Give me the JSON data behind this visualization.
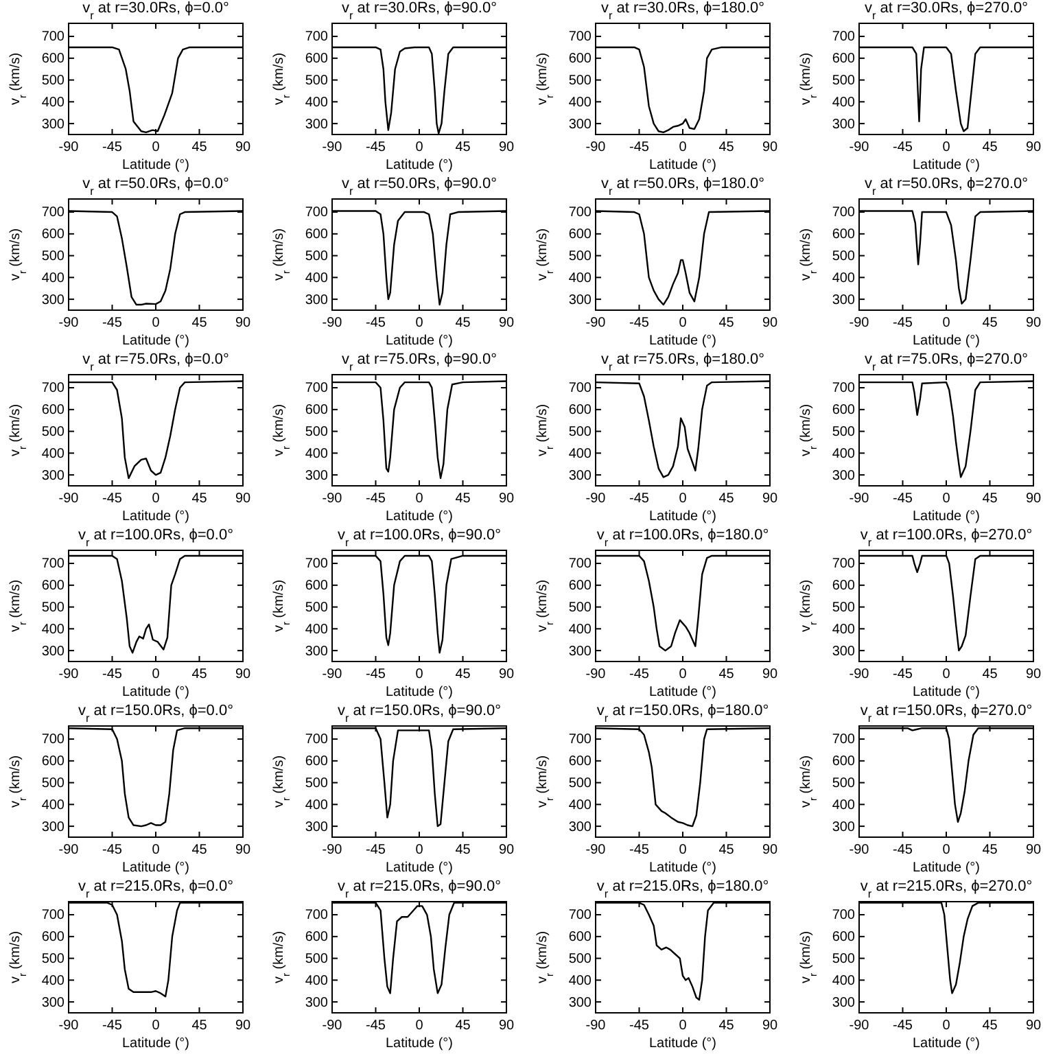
{
  "chart_data": [
    {
      "type": "line",
      "title": "v$_{r}$ at r=30.0Rs, ϕ=0.0°",
      "xlabel": "Latitude (°)",
      "ylabel": "v$_{r}$ (km/s)",
      "xlim": [
        -90,
        90
      ],
      "ylim": [
        250,
        760
      ],
      "xticks": [
        -90,
        -45,
        0,
        45,
        90
      ],
      "yticks": [
        300,
        400,
        500,
        600,
        700
      ],
      "series": [
        {
          "color": "#000000",
          "x": [
            -90,
            -45,
            -38,
            -31,
            -27,
            -23,
            -15,
            -10,
            -5,
            -3,
            2,
            9,
            17,
            23,
            28,
            35,
            90
          ],
          "values": [
            650,
            650,
            640,
            550,
            450,
            310,
            265,
            260,
            268,
            270,
            265,
            340,
            440,
            600,
            640,
            650,
            650
          ]
        }
      ]
    },
    {
      "type": "line",
      "title": "v$_{r}$ at r=30.0Rs, ϕ=90.0°",
      "xlabel": "Latitude (°)",
      "ylabel": "v$_{r}$ (km/s)",
      "xlim": [
        -90,
        90
      ],
      "ylim": [
        250,
        760
      ],
      "xticks": [
        -90,
        -45,
        0,
        45,
        90
      ],
      "yticks": [
        300,
        400,
        500,
        600,
        700
      ],
      "series": [
        {
          "color": "#000000",
          "x": [
            -90,
            -45,
            -40,
            -37,
            -35,
            -32,
            -29,
            -25,
            -20,
            -15,
            -5,
            10,
            13,
            16,
            18,
            20,
            23,
            26,
            30,
            35,
            90
          ],
          "values": [
            650,
            650,
            640,
            550,
            400,
            270,
            350,
            550,
            630,
            645,
            650,
            650,
            620,
            450,
            300,
            255,
            300,
            450,
            620,
            650,
            650
          ]
        }
      ]
    },
    {
      "type": "line",
      "title": "v$_{r}$ at r=30.0Rs, ϕ=180.0°",
      "xlabel": "Latitude (°)",
      "ylabel": "v$_{r}$ (km/s)",
      "xlim": [
        -90,
        90
      ],
      "ylim": [
        250,
        760
      ],
      "xticks": [
        -90,
        -45,
        0,
        45,
        90
      ],
      "yticks": [
        300,
        400,
        500,
        600,
        700
      ],
      "series": [
        {
          "color": "#000000",
          "x": [
            -90,
            -50,
            -45,
            -40,
            -35,
            -30,
            -25,
            -20,
            -15,
            -10,
            -5,
            0,
            3,
            7,
            12,
            17,
            22,
            25,
            30,
            40,
            90
          ],
          "values": [
            650,
            650,
            640,
            560,
            380,
            300,
            265,
            260,
            270,
            285,
            290,
            300,
            320,
            280,
            275,
            320,
            450,
            600,
            640,
            650,
            650
          ]
        }
      ]
    },
    {
      "type": "line",
      "title": "v$_{r}$ at r=30.0Rs, ϕ=270.0°",
      "xlabel": "Latitude (°)",
      "ylabel": "v$_{r}$ (km/s)",
      "xlim": [
        -90,
        90
      ],
      "ylim": [
        250,
        760
      ],
      "xticks": [
        -90,
        -45,
        0,
        45,
        90
      ],
      "yticks": [
        300,
        400,
        500,
        600,
        700
      ],
      "series": [
        {
          "color": "#000000",
          "x": [
            -90,
            -35,
            -31,
            -28,
            -26,
            -23,
            0,
            5,
            10,
            15,
            18,
            22,
            26,
            30,
            35,
            90
          ],
          "values": [
            650,
            650,
            620,
            310,
            550,
            650,
            650,
            620,
            450,
            300,
            265,
            280,
            450,
            620,
            650,
            650
          ]
        }
      ]
    },
    {
      "type": "line",
      "title": "v$_{r}$ at r=50.0Rs, ϕ=0.0°",
      "xlabel": "Latitude (°)",
      "ylabel": "v$_{r}$ (km/s)",
      "xlim": [
        -90,
        90
      ],
      "ylim": [
        250,
        760
      ],
      "xticks": [
        -90,
        -45,
        0,
        45,
        90
      ],
      "yticks": [
        300,
        400,
        500,
        600,
        700
      ],
      "series": [
        {
          "color": "#000000",
          "x": [
            -90,
            -45,
            -40,
            -35,
            -30,
            -25,
            -20,
            -15,
            -10,
            0,
            5,
            10,
            15,
            20,
            25,
            30,
            90
          ],
          "values": [
            705,
            700,
            680,
            580,
            450,
            310,
            275,
            275,
            280,
            278,
            290,
            340,
            440,
            600,
            690,
            700,
            705
          ]
        }
      ]
    },
    {
      "type": "line",
      "title": "v$_{r}$ at r=50.0Rs, ϕ=90.0°",
      "xlabel": "Latitude (°)",
      "ylabel": "v$_{r}$ (km/s)",
      "xlim": [
        -90,
        90
      ],
      "ylim": [
        250,
        760
      ],
      "xticks": [
        -90,
        -45,
        0,
        45,
        90
      ],
      "yticks": [
        300,
        400,
        500,
        600,
        700
      ],
      "series": [
        {
          "color": "#000000",
          "x": [
            -90,
            -45,
            -40,
            -37,
            -34,
            -32,
            -30,
            -26,
            -22,
            -15,
            5,
            10,
            14,
            18,
            21,
            24,
            28,
            32,
            40,
            90
          ],
          "values": [
            705,
            705,
            690,
            600,
            400,
            300,
            330,
            550,
            660,
            700,
            700,
            690,
            600,
            400,
            275,
            330,
            550,
            690,
            700,
            705
          ]
        }
      ]
    },
    {
      "type": "line",
      "title": "v$_{r}$ at r=50.0Rs, ϕ=180.0°",
      "xlabel": "Latitude (°)",
      "ylabel": "v$_{r}$ (km/s)",
      "xlim": [
        -90,
        90
      ],
      "ylim": [
        250,
        760
      ],
      "xticks": [
        -90,
        -45,
        0,
        45,
        90
      ],
      "yticks": [
        300,
        400,
        500,
        600,
        700
      ],
      "series": [
        {
          "color": "#000000",
          "x": [
            -90,
            -50,
            -45,
            -40,
            -35,
            -30,
            -25,
            -20,
            -15,
            -10,
            -5,
            -2,
            0,
            3,
            7,
            12,
            17,
            22,
            27,
            90
          ],
          "values": [
            705,
            700,
            690,
            600,
            400,
            340,
            300,
            275,
            310,
            370,
            420,
            480,
            480,
            420,
            330,
            290,
            400,
            600,
            700,
            705
          ]
        }
      ]
    },
    {
      "type": "line",
      "title": "v$_{r}$ at r=50.0Rs, ϕ=270.0°",
      "xlabel": "Latitude (°)",
      "ylabel": "v$_{r}$ (km/s)",
      "xlim": [
        -90,
        90
      ],
      "ylim": [
        250,
        760
      ],
      "xticks": [
        -90,
        -45,
        0,
        45,
        90
      ],
      "yticks": [
        300,
        400,
        500,
        600,
        700
      ],
      "series": [
        {
          "color": "#000000",
          "x": [
            -90,
            -35,
            -32,
            -29,
            -27,
            -25,
            0,
            5,
            10,
            13,
            16,
            20,
            25,
            30,
            35,
            90
          ],
          "values": [
            705,
            705,
            650,
            460,
            560,
            700,
            700,
            640,
            480,
            350,
            280,
            300,
            480,
            680,
            700,
            705
          ]
        }
      ]
    },
    {
      "type": "line",
      "title": "v$_{r}$ at r=75.0Rs, ϕ=0.0°",
      "xlabel": "Latitude (°)",
      "ylabel": "v$_{r}$ (km/s)",
      "xlim": [
        -90,
        90
      ],
      "ylim": [
        250,
        760
      ],
      "xticks": [
        -90,
        -45,
        0,
        45,
        90
      ],
      "yticks": [
        300,
        400,
        500,
        600,
        700
      ],
      "series": [
        {
          "color": "#000000",
          "x": [
            -90,
            -45,
            -40,
            -35,
            -32,
            -28,
            -22,
            -15,
            -10,
            -5,
            0,
            5,
            10,
            15,
            20,
            25,
            30,
            90
          ],
          "values": [
            725,
            725,
            690,
            560,
            380,
            285,
            340,
            370,
            375,
            320,
            300,
            310,
            380,
            480,
            600,
            700,
            725,
            730
          ]
        }
      ]
    },
    {
      "type": "line",
      "title": "v$_{r}$ at r=75.0Rs, ϕ=90.0°",
      "xlabel": "Latitude (°)",
      "ylabel": "v$_{r}$ (km/s)",
      "xlim": [
        -90,
        90
      ],
      "ylim": [
        250,
        760
      ],
      "xticks": [
        -90,
        -45,
        0,
        45,
        90
      ],
      "yticks": [
        300,
        400,
        500,
        600,
        700
      ],
      "series": [
        {
          "color": "#000000",
          "x": [
            -90,
            -45,
            -40,
            -37,
            -34,
            -32,
            -30,
            -26,
            -20,
            -15,
            10,
            13,
            16,
            19,
            22,
            25,
            29,
            34,
            45,
            90
          ],
          "values": [
            725,
            725,
            700,
            550,
            330,
            315,
            380,
            600,
            700,
            725,
            725,
            700,
            550,
            380,
            285,
            350,
            600,
            715,
            725,
            730
          ]
        }
      ]
    },
    {
      "type": "line",
      "title": "v$_{r}$ at r=75.0Rs, ϕ=180.0°",
      "xlabel": "Latitude (°)",
      "ylabel": "v$_{r}$ (km/s)",
      "xlim": [
        -90,
        90
      ],
      "ylim": [
        250,
        760
      ],
      "xticks": [
        -90,
        -45,
        0,
        45,
        90
      ],
      "yticks": [
        300,
        400,
        500,
        600,
        700
      ],
      "series": [
        {
          "color": "#000000",
          "x": [
            -90,
            -45,
            -40,
            -35,
            -30,
            -25,
            -20,
            -15,
            -10,
            -5,
            -2,
            2,
            5,
            9,
            13,
            16,
            20,
            25,
            30,
            90
          ],
          "values": [
            725,
            720,
            660,
            550,
            430,
            330,
            290,
            300,
            340,
            430,
            560,
            520,
            420,
            370,
            320,
            420,
            600,
            710,
            725,
            730
          ]
        }
      ]
    },
    {
      "type": "line",
      "title": "v$_{r}$ at r=75.0Rs, ϕ=270.0°",
      "xlabel": "Latitude (°)",
      "ylabel": "v$_{r}$ (km/s)",
      "xlim": [
        -90,
        90
      ],
      "ylim": [
        250,
        760
      ],
      "xticks": [
        -90,
        -45,
        0,
        45,
        90
      ],
      "yticks": [
        300,
        400,
        500,
        600,
        700
      ],
      "series": [
        {
          "color": "#000000",
          "x": [
            -90,
            -35,
            -33,
            -30,
            -27,
            -25,
            0,
            3,
            7,
            10,
            13,
            15,
            20,
            25,
            30,
            35,
            90
          ],
          "values": [
            725,
            725,
            680,
            575,
            650,
            720,
            725,
            690,
            570,
            450,
            350,
            290,
            340,
            500,
            690,
            725,
            730
          ]
        }
      ]
    },
    {
      "type": "line",
      "title": "v$_{r}$ at r=100.0Rs, ϕ=0.0°",
      "xlabel": "Latitude (°)",
      "ylabel": "v$_{r}$ (km/s)",
      "xlim": [
        -90,
        90
      ],
      "ylim": [
        250,
        760
      ],
      "xticks": [
        -90,
        -45,
        0,
        45,
        90
      ],
      "yticks": [
        300,
        400,
        500,
        600,
        700
      ],
      "series": [
        {
          "color": "#000000",
          "x": [
            -90,
            -45,
            -40,
            -35,
            -30,
            -27,
            -24,
            -20,
            -17,
            -13,
            -10,
            -7,
            -3,
            2,
            8,
            12,
            16,
            20,
            25,
            30,
            90
          ],
          "values": [
            735,
            735,
            720,
            620,
            450,
            320,
            290,
            340,
            365,
            355,
            400,
            420,
            350,
            340,
            305,
            360,
            600,
            650,
            720,
            735,
            735
          ]
        }
      ]
    },
    {
      "type": "line",
      "title": "v$_{r}$ at r=100.0Rs, ϕ=90.0°",
      "xlabel": "Latitude (°)",
      "ylabel": "v$_{r}$ (km/s)",
      "xlim": [
        -90,
        90
      ],
      "ylim": [
        250,
        760
      ],
      "xticks": [
        -90,
        -45,
        0,
        45,
        90
      ],
      "yticks": [
        300,
        400,
        500,
        600,
        700
      ],
      "series": [
        {
          "color": "#000000",
          "x": [
            -90,
            -45,
            -40,
            -37,
            -34,
            -32,
            -30,
            -26,
            -20,
            -15,
            10,
            13,
            16,
            19,
            21,
            24,
            28,
            33,
            45,
            90
          ],
          "values": [
            735,
            735,
            710,
            560,
            360,
            325,
            380,
            600,
            710,
            735,
            735,
            710,
            560,
            380,
            290,
            350,
            600,
            720,
            735,
            735
          ]
        }
      ]
    },
    {
      "type": "line",
      "title": "v$_{r}$ at r=100.0Rs, ϕ=180.0°",
      "xlabel": "Latitude (°)",
      "ylabel": "v$_{r}$ (km/s)",
      "xlim": [
        -90,
        90
      ],
      "ylim": [
        250,
        760
      ],
      "xticks": [
        -90,
        -45,
        0,
        45,
        90
      ],
      "yticks": [
        300,
        400,
        500,
        600,
        700
      ],
      "series": [
        {
          "color": "#000000",
          "x": [
            -90,
            -45,
            -40,
            -35,
            -30,
            -27,
            -24,
            -18,
            -12,
            -8,
            -3,
            3,
            7,
            13,
            16,
            20,
            25,
            30,
            90
          ],
          "values": [
            735,
            735,
            710,
            620,
            500,
            400,
            320,
            300,
            320,
            380,
            440,
            410,
            380,
            320,
            450,
            650,
            725,
            735,
            735
          ]
        }
      ]
    },
    {
      "type": "line",
      "title": "v$_{r}$ at r=100.0Rs, ϕ=270.0°",
      "xlabel": "Latitude (°)",
      "ylabel": "v$_{r}$ (km/s)",
      "xlim": [
        -90,
        90
      ],
      "ylim": [
        250,
        760
      ],
      "xticks": [
        -90,
        -45,
        0,
        45,
        90
      ],
      "yticks": [
        300,
        400,
        500,
        600,
        700
      ],
      "series": [
        {
          "color": "#000000",
          "x": [
            -90,
            -35,
            -33,
            -30,
            -27,
            -25,
            0,
            3,
            7,
            10,
            13,
            16,
            20,
            25,
            30,
            35,
            90
          ],
          "values": [
            735,
            735,
            700,
            660,
            700,
            735,
            735,
            700,
            550,
            420,
            300,
            320,
            370,
            550,
            720,
            735,
            735
          ]
        }
      ]
    },
    {
      "type": "line",
      "title": "v$_{r}$ at r=150.0Rs, ϕ=0.0°",
      "xlabel": "Latitude (°)",
      "ylabel": "v$_{r}$ (km/s)",
      "xlim": [
        -90,
        90
      ],
      "ylim": [
        250,
        760
      ],
      "xticks": [
        -90,
        -45,
        0,
        45,
        90
      ],
      "yticks": [
        300,
        400,
        500,
        600,
        700
      ],
      "series": [
        {
          "color": "#000000",
          "x": [
            -90,
            -45,
            -40,
            -35,
            -32,
            -28,
            -23,
            -15,
            -10,
            -5,
            0,
            5,
            10,
            14,
            18,
            22,
            30,
            90
          ],
          "values": [
            750,
            745,
            700,
            600,
            450,
            340,
            305,
            300,
            305,
            315,
            305,
            305,
            320,
            450,
            650,
            740,
            750,
            750
          ]
        }
      ]
    },
    {
      "type": "line",
      "title": "v$_{r}$ at r=150.0Rs, ϕ=90.0°",
      "xlabel": "Latitude (°)",
      "ylabel": "v$_{r}$ (km/s)",
      "xlim": [
        -90,
        90
      ],
      "ylim": [
        250,
        760
      ],
      "xticks": [
        -90,
        -45,
        0,
        45,
        90
      ],
      "yticks": [
        300,
        400,
        500,
        600,
        700
      ],
      "series": [
        {
          "color": "#000000",
          "x": [
            -90,
            -45,
            -40,
            -36,
            -33,
            -30,
            -27,
            -22,
            10,
            13,
            16,
            19,
            22,
            26,
            30,
            35,
            90
          ],
          "values": [
            750,
            750,
            700,
            500,
            340,
            400,
            600,
            740,
            740,
            650,
            450,
            300,
            310,
            500,
            690,
            745,
            750
          ]
        }
      ]
    },
    {
      "type": "line",
      "title": "v$_{r}$ at r=150.0Rs, ϕ=180.0°",
      "xlabel": "Latitude (°)",
      "ylabel": "v$_{r}$ (km/s)",
      "xlim": [
        -90,
        90
      ],
      "ylim": [
        250,
        760
      ],
      "xticks": [
        -90,
        -45,
        0,
        45,
        90
      ],
      "yticks": [
        300,
        400,
        500,
        600,
        700
      ],
      "series": [
        {
          "color": "#000000",
          "x": [
            -90,
            -45,
            -40,
            -35,
            -32,
            -28,
            -22,
            -18,
            -12,
            -5,
            0,
            5,
            10,
            14,
            18,
            22,
            25,
            90
          ],
          "values": [
            750,
            745,
            720,
            640,
            570,
            400,
            370,
            360,
            340,
            320,
            315,
            305,
            300,
            350,
            500,
            700,
            745,
            750
          ]
        }
      ]
    },
    {
      "type": "line",
      "title": "v$_{r}$ at r=150.0Rs, ϕ=270.0°",
      "xlabel": "Latitude (°)",
      "ylabel": "v$_{r}$ (km/s)",
      "xlim": [
        -90,
        90
      ],
      "ylim": [
        250,
        760
      ],
      "xticks": [
        -90,
        -45,
        0,
        45,
        90
      ],
      "yticks": [
        300,
        400,
        500,
        600,
        700
      ],
      "series": [
        {
          "color": "#000000",
          "x": [
            -90,
            -40,
            -35,
            -30,
            -25,
            0,
            3,
            6,
            9,
            12,
            15,
            19,
            23,
            28,
            33,
            90
          ],
          "values": [
            750,
            750,
            740,
            745,
            750,
            750,
            700,
            550,
            400,
            320,
            360,
            460,
            600,
            720,
            750,
            750
          ]
        }
      ]
    },
    {
      "type": "line",
      "title": "v$_{r}$ at r=215.0Rs, ϕ=0.0°",
      "xlabel": "Latitude (°)",
      "ylabel": "v$_{r}$ (km/s)",
      "xlim": [
        -90,
        90
      ],
      "ylim": [
        250,
        760
      ],
      "xticks": [
        -90,
        -45,
        0,
        45,
        90
      ],
      "yticks": [
        300,
        400,
        500,
        600,
        700
      ],
      "series": [
        {
          "color": "#000000",
          "x": [
            -90,
            -50,
            -45,
            -40,
            -35,
            -32,
            -28,
            -23,
            -15,
            -5,
            0,
            5,
            10,
            13,
            17,
            22,
            25,
            90
          ],
          "values": [
            755,
            755,
            745,
            700,
            580,
            450,
            360,
            345,
            345,
            345,
            350,
            340,
            325,
            400,
            600,
            720,
            755,
            755
          ]
        }
      ]
    },
    {
      "type": "line",
      "title": "v$_{r}$ at r=215.0Rs, ϕ=90.0°",
      "xlabel": "Latitude (°)",
      "ylabel": "v$_{r}$ (km/s)",
      "xlim": [
        -90,
        90
      ],
      "ylim": [
        250,
        760
      ],
      "xticks": [
        -90,
        -45,
        0,
        45,
        90
      ],
      "yticks": [
        300,
        400,
        500,
        600,
        700
      ],
      "series": [
        {
          "color": "#000000",
          "x": [
            -90,
            -45,
            -40,
            -36,
            -33,
            -30,
            -27,
            -23,
            -18,
            -12,
            -6,
            -2,
            3,
            8,
            12,
            15,
            19,
            23,
            27,
            31,
            36,
            90
          ],
          "values": [
            755,
            755,
            720,
            500,
            370,
            340,
            500,
            670,
            690,
            690,
            720,
            740,
            740,
            700,
            600,
            450,
            340,
            380,
            550,
            700,
            755,
            755
          ]
        }
      ]
    },
    {
      "type": "line",
      "title": "v$_{r}$ at r=215.0Rs, ϕ=180.0°",
      "xlabel": "Latitude (°)",
      "ylabel": "v$_{r}$ (km/s)",
      "xlim": [
        -90,
        90
      ],
      "ylim": [
        250,
        760
      ],
      "xticks": [
        -90,
        -45,
        0,
        45,
        90
      ],
      "yticks": [
        300,
        400,
        500,
        600,
        700
      ],
      "series": [
        {
          "color": "#000000",
          "x": [
            -90,
            -45,
            -40,
            -35,
            -30,
            -27,
            -22,
            -17,
            -13,
            -8,
            -3,
            0,
            3,
            6,
            10,
            14,
            17,
            20,
            23,
            26,
            32,
            90
          ],
          "values": [
            755,
            755,
            745,
            700,
            650,
            560,
            540,
            550,
            540,
            520,
            500,
            420,
            400,
            410,
            370,
            320,
            310,
            400,
            600,
            720,
            755,
            755
          ]
        }
      ]
    },
    {
      "type": "line",
      "title": "v$_{r}$ at r=215.0Rs, ϕ=270.0°",
      "xlabel": "Latitude (°)",
      "ylabel": "v$_{r}$ (km/s)",
      "xlim": [
        -90,
        90
      ],
      "ylim": [
        250,
        760
      ],
      "xticks": [
        -90,
        -45,
        0,
        45,
        90
      ],
      "yticks": [
        300,
        400,
        500,
        600,
        700
      ],
      "series": [
        {
          "color": "#000000",
          "x": [
            -90,
            -5,
            -2,
            1,
            4,
            6,
            10,
            14,
            18,
            22,
            27,
            33,
            90
          ],
          "values": [
            755,
            755,
            700,
            550,
            400,
            340,
            380,
            480,
            600,
            680,
            740,
            755,
            755
          ]
        }
      ]
    }
  ]
}
